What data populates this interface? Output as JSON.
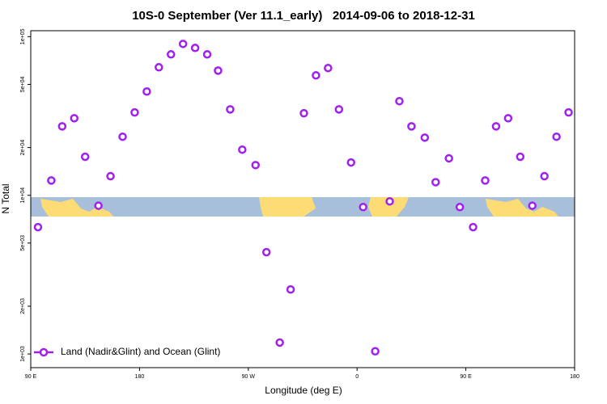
{
  "chart_data": {
    "type": "scatter",
    "title": "10S-0 September (Ver 11.1_early)   2014-09-06 to 2018-12-31",
    "xlabel": "Longitude (deg E)",
    "ylabel": "N Total",
    "log_y": true,
    "legend": "bottom-left",
    "xlim": [
      90,
      540
    ],
    "xticks": [
      {
        "value": 90,
        "label": "90 E"
      },
      {
        "value": 180,
        "label": "180"
      },
      {
        "value": 270,
        "label": "90 W"
      },
      {
        "value": 360,
        "label": "0"
      },
      {
        "value": 450,
        "label": "90 E"
      },
      {
        "value": 540,
        "label": "180"
      }
    ],
    "ylim": [
      820,
      109000
    ],
    "yticks": [
      {
        "value": 1000,
        "label": "1e+03"
      },
      {
        "value": 2000,
        "label": "2e+03"
      },
      {
        "value": 5000,
        "label": "5e+03"
      },
      {
        "value": 10000,
        "label": "1e+04"
      },
      {
        "value": 20000,
        "label": "2e+04"
      },
      {
        "value": 50000,
        "label": "5e+04"
      },
      {
        "value": 100000,
        "label": "1e+05"
      }
    ],
    "series": [
      {
        "name": "Land (Nadir&Glint) and Ocean (Glint)",
        "color": "#a020f0",
        "x": [
          96,
          107,
          116,
          126,
          135,
          146,
          156,
          166,
          176,
          186,
          196,
          206,
          216,
          226,
          236,
          245,
          255,
          265,
          276,
          285,
          296,
          305,
          316,
          326,
          336,
          345,
          355,
          365,
          375,
          387,
          395,
          405,
          416,
          425,
          436,
          445,
          456,
          466,
          475,
          485,
          495,
          505,
          515,
          525,
          535
        ],
        "values": [
          6300,
          12400,
          27200,
          30600,
          17500,
          8600,
          13200,
          23400,
          33300,
          45100,
          64100,
          77300,
          90000,
          84900,
          77300,
          61100,
          34800,
          19400,
          15500,
          4380,
          1180,
          2550,
          32900,
          57000,
          63400,
          34800,
          16100,
          8430,
          1040,
          9160,
          39200,
          27200,
          23100,
          12100,
          17100,
          8430,
          6300,
          12400,
          27200,
          30600,
          17500,
          8600,
          13200,
          23400,
          33300
        ]
      }
    ]
  }
}
